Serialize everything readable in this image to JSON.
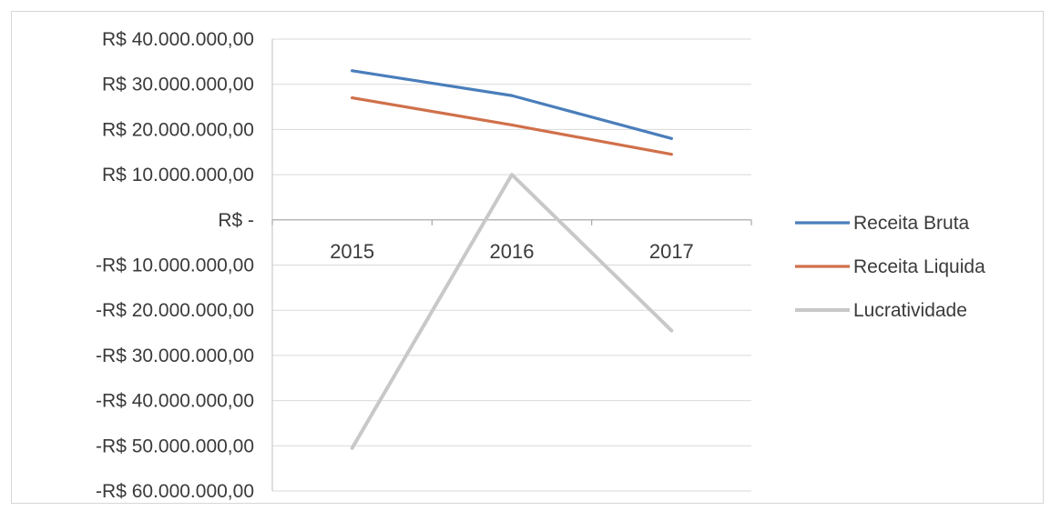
{
  "chart_data": {
    "type": "line",
    "categories": [
      "2015",
      "2016",
      "2017"
    ],
    "series": [
      {
        "name": "Receita Bruta",
        "color": "#4a7ebb",
        "values": [
          33000000,
          27500000,
          18000000
        ]
      },
      {
        "name": "Receita Liquida",
        "color": "#d0704a",
        "values": [
          27000000,
          21000000,
          14500000
        ]
      },
      {
        "name": "Lucratividade",
        "color": "#c8c8c8",
        "values": [
          -50500000,
          10000000,
          -24500000
        ]
      }
    ],
    "ylim": [
      -60000000,
      40000000
    ],
    "y_ticks": [
      40000000,
      30000000,
      20000000,
      10000000,
      0,
      -10000000,
      -20000000,
      -30000000,
      -40000000,
      -50000000,
      -60000000
    ],
    "y_tick_labels": [
      "R$ 40.000.000,00",
      "R$ 30.000.000,00",
      "R$ 20.000.000,00",
      "R$ 10.000.000,00",
      "R$ -",
      "-R$ 10.000.000,00",
      "-R$ 20.000.000,00",
      "-R$ 30.000.000,00",
      "-R$ 40.000.000,00",
      "-R$ 50.000.000,00",
      "-R$ 60.000.000,00"
    ],
    "title": "",
    "xlabel": "",
    "ylabel": "",
    "grid": true,
    "legend_position": "right"
  }
}
